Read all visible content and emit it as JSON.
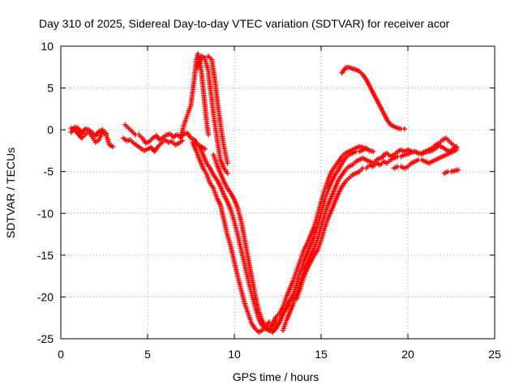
{
  "chart_data": {
    "type": "scatter",
    "title": "Day 310 of 2025, Sidereal Day-to-day VTEC variation (SDTVAR) for receiver acor",
    "xlabel": "GPS time / hours",
    "ylabel": "SDTVAR / TECUs",
    "xlim": [
      0,
      25
    ],
    "ylim": [
      -25,
      10
    ],
    "xticks": [
      "0",
      "5",
      "10",
      "15",
      "20",
      "25"
    ],
    "yticks": [
      "10",
      "5",
      "0",
      "-5",
      "-10",
      "-15",
      "-20",
      "-25"
    ],
    "grid": true,
    "marker": "plus",
    "color": "#ff0000",
    "series": [
      {
        "x": [
          0.6,
          0.8,
          1.0,
          1.2,
          1.4,
          1.6,
          1.8,
          2.0,
          2.2,
          2.4,
          2.6,
          2.8,
          3.0
        ],
        "y": [
          0.2,
          0.0,
          -0.5,
          -1.0,
          -0.6,
          -0.2,
          -0.8,
          -1.5,
          -1.2,
          -0.3,
          -0.5,
          -1.8,
          -2.0
        ]
      },
      {
        "x": [
          0.6,
          0.8,
          1.0,
          1.2,
          1.4,
          1.6,
          1.8,
          2.0,
          2.2,
          2.4,
          2.6
        ],
        "y": [
          -0.3,
          0.3,
          0.2,
          -0.4,
          0.1,
          0.0,
          -0.3,
          -0.7,
          -0.2,
          0.0,
          -0.4
        ]
      },
      {
        "x": [
          3.6,
          3.8,
          4.0,
          4.2,
          4.4,
          4.6,
          4.8,
          5.0,
          5.2,
          5.4,
          5.6,
          5.8,
          6.0,
          6.2,
          6.4,
          6.6,
          6.8,
          7.0
        ],
        "y": [
          -1.0,
          -1.3,
          -1.2,
          -1.6,
          -1.9,
          -2.2,
          -2.5,
          -2.3,
          -2.1,
          -2.6,
          -2.0,
          -1.6,
          -1.2,
          -1.5,
          -1.4,
          -1.8,
          -1.6,
          -1.3
        ]
      },
      {
        "x": [
          3.7,
          3.9,
          4.1,
          4.3,
          4.5,
          4.7,
          4.9,
          5.1,
          5.3,
          5.5,
          5.7,
          5.9,
          6.1,
          6.3,
          6.5
        ],
        "y": [
          0.6,
          0.2,
          -0.2,
          -0.6,
          -0.6,
          -1.0,
          -1.6,
          -1.4,
          -1.0,
          -0.7,
          -1.2,
          -0.9,
          -0.6,
          -0.5,
          -0.9
        ]
      },
      {
        "x": [
          6.5,
          6.7,
          6.9,
          7.1,
          7.3,
          7.5,
          7.7,
          7.9,
          8.1,
          8.3
        ],
        "y": [
          -0.8,
          -0.6,
          -0.9,
          -0.5,
          -0.4,
          -1.0,
          -1.2,
          -1.8,
          -2.0,
          -2.3
        ]
      },
      {
        "x": [
          6.9,
          7.1,
          7.3,
          7.5,
          7.6,
          7.7,
          7.8,
          7.9,
          8.0,
          8.1,
          8.2,
          8.3,
          8.4,
          8.5
        ],
        "y": [
          -1.0,
          0.6,
          1.8,
          3.0,
          4.6,
          6.2,
          8.2,
          9.1,
          8.4,
          7.0,
          5.0,
          3.0,
          1.0,
          -0.6
        ]
      },
      {
        "x": [
          7.9,
          8.1,
          8.3,
          8.5,
          8.6,
          8.7,
          8.8,
          8.9,
          9.0,
          9.1,
          9.2,
          9.4,
          9.6
        ],
        "y": [
          7.4,
          8.8,
          8.6,
          7.0,
          5.2,
          3.6,
          1.8,
          0.4,
          -1.0,
          -2.4,
          -3.6,
          -4.6,
          -5.2
        ]
      },
      {
        "x": [
          8.5,
          8.7,
          8.9,
          9.0,
          9.1,
          9.2,
          9.3,
          9.4,
          9.5,
          9.6
        ],
        "y": [
          8.8,
          8.4,
          5.6,
          3.8,
          2.2,
          0.6,
          -0.8,
          -2.0,
          -3.0,
          -4.0
        ]
      },
      {
        "x": [
          7.6,
          7.8,
          8.0,
          8.2,
          8.4,
          8.6,
          8.8,
          9.0,
          9.2,
          9.4,
          9.6,
          9.8,
          10.0,
          10.2,
          10.4,
          10.6,
          10.8,
          11.0,
          11.2,
          11.4,
          11.6,
          11.8,
          12.0
        ],
        "y": [
          -1.5,
          -2.5,
          -3.6,
          -4.6,
          -5.3,
          -6.4,
          -7.0,
          -8.2,
          -9.0,
          -10.8,
          -12.6,
          -14.0,
          -15.8,
          -17.6,
          -19.2,
          -20.8,
          -22.0,
          -23.2,
          -23.8,
          -24.2,
          -24.0,
          -23.6,
          -23.0
        ]
      },
      {
        "x": [
          8.0,
          8.2,
          8.4,
          8.6,
          8.8,
          9.0,
          9.2,
          9.4,
          9.6,
          9.8,
          10.0,
          10.2,
          10.4,
          10.6,
          10.8,
          11.0,
          11.2,
          11.4,
          11.6,
          11.8,
          12.0,
          12.2,
          12.4
        ],
        "y": [
          -2.0,
          -3.0,
          -4.0,
          -4.6,
          -5.4,
          -6.0,
          -6.8,
          -7.8,
          -8.6,
          -9.6,
          -11.0,
          -12.6,
          -14.4,
          -16.2,
          -18.0,
          -19.6,
          -21.2,
          -22.6,
          -23.4,
          -23.8,
          -24.0,
          -23.4,
          -22.8
        ]
      },
      {
        "x": [
          8.8,
          9.0,
          9.2,
          9.4,
          9.6,
          9.8,
          10.0,
          10.2,
          10.4,
          10.6,
          10.8,
          11.0,
          11.2,
          11.4,
          11.6,
          11.8,
          12.0,
          12.2,
          12.4,
          12.6,
          12.8,
          13.0,
          13.2
        ],
        "y": [
          -3.0,
          -4.2,
          -5.2,
          -6.2,
          -7.0,
          -7.6,
          -8.4,
          -9.4,
          -11.0,
          -13.2,
          -15.4,
          -17.6,
          -19.8,
          -21.6,
          -22.8,
          -23.6,
          -24.0,
          -24.2,
          -23.8,
          -23.0,
          -22.0,
          -21.2,
          -20.4
        ]
      },
      {
        "x": [
          11.8,
          12.0,
          12.2,
          12.4,
          12.6,
          12.8,
          13.0,
          13.2,
          13.4,
          13.6,
          13.8,
          14.0,
          14.2,
          14.4,
          14.6,
          14.8,
          15.0,
          15.2,
          15.4,
          15.6,
          15.8,
          16.0,
          16.2,
          16.4,
          16.6,
          16.8,
          17.0,
          17.2,
          17.4,
          17.6
        ],
        "y": [
          -23.6,
          -24.0,
          -23.2,
          -22.4,
          -22.0,
          -21.2,
          -20.0,
          -19.0,
          -18.0,
          -16.8,
          -15.6,
          -14.4,
          -13.6,
          -12.6,
          -11.6,
          -10.2,
          -8.6,
          -7.2,
          -6.0,
          -5.0,
          -4.4,
          -3.8,
          -3.2,
          -2.8,
          -2.6,
          -2.4,
          -2.2,
          -2.0,
          -2.1,
          -2.3
        ]
      },
      {
        "x": [
          12.2,
          12.4,
          12.6,
          12.8,
          13.0,
          13.2,
          13.4,
          13.6,
          13.8,
          14.0,
          14.2,
          14.4,
          14.6,
          14.8,
          15.0,
          15.2,
          15.4,
          15.6,
          15.8,
          16.0,
          16.2,
          16.4,
          16.6,
          16.8,
          17.0,
          17.2,
          17.4,
          17.6,
          17.8,
          18.0
        ],
        "y": [
          -24.2,
          -23.6,
          -23.0,
          -22.0,
          -21.4,
          -20.6,
          -19.6,
          -18.4,
          -17.0,
          -15.8,
          -14.8,
          -13.8,
          -12.8,
          -11.4,
          -10.0,
          -8.4,
          -7.2,
          -6.2,
          -5.4,
          -4.8,
          -4.0,
          -3.4,
          -3.0,
          -2.8,
          -2.6,
          -2.6,
          -2.4,
          -2.2,
          -2.5,
          -2.6
        ]
      },
      {
        "x": [
          12.8,
          13.0,
          13.2,
          13.4,
          13.6,
          13.8,
          14.0,
          14.2,
          14.4,
          14.6,
          14.8,
          15.0,
          15.2,
          15.4,
          15.6,
          15.8,
          16.0,
          16.2,
          16.4,
          16.6,
          16.8,
          17.0,
          17.2,
          17.4,
          17.6,
          17.8,
          18.0,
          18.2,
          18.4,
          18.6
        ],
        "y": [
          -24.0,
          -22.8,
          -21.8,
          -20.8,
          -19.4,
          -18.2,
          -17.0,
          -16.0,
          -15.0,
          -14.2,
          -13.0,
          -11.6,
          -10.2,
          -9.0,
          -8.0,
          -7.0,
          -6.0,
          -5.4,
          -4.8,
          -4.4,
          -4.2,
          -3.8,
          -3.6,
          -3.4,
          -3.6,
          -3.8,
          -4.0,
          -3.6,
          -3.4,
          -3.2
        ]
      },
      {
        "x": [
          13.6,
          13.8,
          14.0,
          14.2,
          14.4,
          14.6,
          14.8,
          15.0,
          15.2,
          15.4,
          15.6,
          15.8,
          16.0,
          16.2,
          16.4,
          16.6,
          16.8,
          17.0,
          17.2,
          17.4,
          17.6,
          17.8,
          18.0,
          18.2,
          18.4,
          18.6,
          18.8,
          19.0,
          19.2,
          19.4
        ],
        "y": [
          -20.2,
          -19.0,
          -17.6,
          -16.6,
          -15.8,
          -15.0,
          -14.4,
          -13.2,
          -11.8,
          -10.6,
          -9.6,
          -8.6,
          -7.6,
          -6.8,
          -6.2,
          -5.8,
          -5.4,
          -5.2,
          -5.0,
          -4.6,
          -4.6,
          -4.2,
          -4.4,
          -4.0,
          -4.2,
          -3.8,
          -4.0,
          -3.6,
          -3.4,
          -3.2
        ]
      },
      {
        "x": [
          18.6,
          18.8,
          19.0,
          19.2,
          19.4,
          19.6,
          19.8,
          20.0,
          20.2,
          20.4,
          20.6,
          20.8,
          21.0,
          21.2,
          21.4,
          21.6,
          21.8,
          22.0,
          22.2,
          22.4,
          22.6,
          22.8
        ],
        "y": [
          -3.0,
          -2.8,
          -3.2,
          -3.0,
          -2.6,
          -2.4,
          -2.6,
          -2.4,
          -2.6,
          -2.6,
          -2.8,
          -2.8,
          -2.6,
          -2.4,
          -2.2,
          -1.8,
          -1.6,
          -1.2,
          -1.0,
          -1.4,
          -1.8,
          -2.2
        ]
      },
      {
        "x": [
          19.2,
          19.4,
          19.6,
          19.8,
          20.0,
          20.2,
          20.4,
          20.6,
          20.8,
          21.0,
          21.2,
          21.4,
          21.6,
          21.8,
          22.0,
          22.2,
          22.4,
          22.6,
          22.8
        ],
        "y": [
          -4.6,
          -4.4,
          -4.4,
          -4.6,
          -4.4,
          -4.0,
          -3.8,
          -3.6,
          -3.6,
          -3.8,
          -4.0,
          -3.8,
          -3.6,
          -3.4,
          -3.2,
          -3.0,
          -2.8,
          -2.6,
          -2.4
        ]
      },
      {
        "x": [
          19.6,
          19.8,
          20.0,
          20.2,
          20.4,
          20.6,
          20.8,
          21.0,
          21.2,
          21.4,
          21.6,
          21.8,
          22.0,
          22.2,
          22.4,
          22.6,
          22.8
        ],
        "y": [
          -3.2,
          -3.0,
          -2.9,
          -2.7,
          -2.6,
          -2.8,
          -2.9,
          -2.7,
          -2.6,
          -2.5,
          -2.2,
          -1.9,
          -2.1,
          -2.4,
          -2.6,
          -2.3,
          -2.0
        ]
      },
      {
        "x": [
          22.1,
          22.3,
          22.5,
          22.7,
          22.9
        ],
        "y": [
          -5.2,
          -5.0,
          -5.0,
          -4.9,
          -4.8
        ]
      },
      {
        "x": [
          16.2,
          16.4,
          16.6,
          16.8,
          17.0,
          17.2,
          17.4,
          17.6,
          17.8,
          18.0,
          18.2,
          18.4,
          18.6,
          18.8,
          19.0,
          19.2,
          19.4,
          19.6,
          19.8
        ],
        "y": [
          6.8,
          7.4,
          7.5,
          7.3,
          7.2,
          7.0,
          6.6,
          6.0,
          5.2,
          4.4,
          3.6,
          2.8,
          2.0,
          1.2,
          0.6,
          0.4,
          0.2,
          0.1,
          0.1
        ]
      }
    ]
  }
}
